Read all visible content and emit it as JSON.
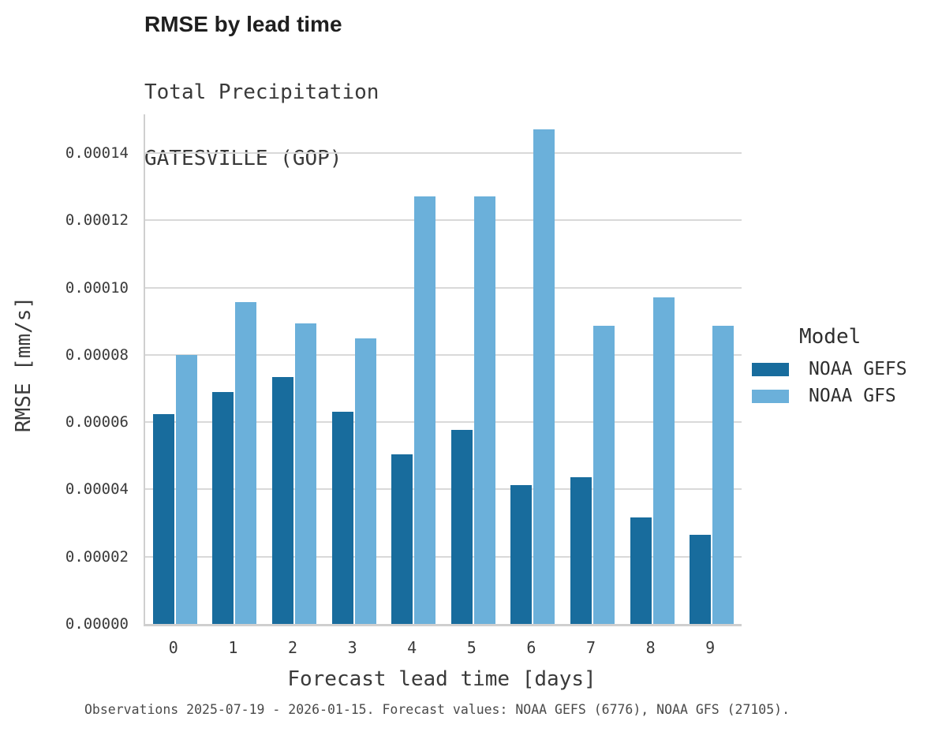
{
  "figure": {
    "title": "RMSE by lead time",
    "subtitle_line1": "Total Precipitation",
    "subtitle_line2": "GATESVILLE (GOP)",
    "footer": "Observations 2025-07-19 - 2026-01-15. Forecast values: NOAA GEFS (6776), NOAA GFS (27105)."
  },
  "chart_data": {
    "type": "bar",
    "title": "RMSE by lead time",
    "subtitle": [
      "Total Precipitation",
      "GATESVILLE (GOP)"
    ],
    "xlabel": "Forecast lead time [days]",
    "ylabel": "RMSE [mm/s]",
    "categories": [
      "0",
      "1",
      "2",
      "3",
      "4",
      "5",
      "6",
      "7",
      "8",
      "9"
    ],
    "series": [
      {
        "name": "NOAA GEFS",
        "color": "#186c9d",
        "values": [
          6.25e-05,
          6.9e-05,
          7.35e-05,
          6.3e-05,
          5.05e-05,
          5.78e-05,
          4.12e-05,
          4.37e-05,
          3.16e-05,
          2.65e-05
        ]
      },
      {
        "name": "NOAA GFS",
        "color": "#6bb0da",
        "values": [
          7.99e-05,
          9.57e-05,
          8.94e-05,
          8.49e-05,
          0.000127,
          0.000127,
          0.000147,
          8.86e-05,
          9.72e-05,
          8.86e-05
        ]
      }
    ],
    "y_ticks": [
      0.0,
      2e-05,
      4e-05,
      6e-05,
      8e-05,
      0.0001,
      0.00012,
      0.00014
    ],
    "y_tick_labels": [
      "0.00000",
      "0.00002",
      "0.00004",
      "0.00006",
      "0.00008",
      "0.00010",
      "0.00012",
      "0.00014"
    ],
    "ylim": [
      0,
      0.0001515
    ],
    "grid": "horizontal",
    "legend_title": "Model",
    "legend_position": "right",
    "colors": {
      "grid": "#d9d9d9",
      "spine": "#cfcfcf",
      "title_text": "#1f1f1f",
      "axis_text": "#3a3a3a",
      "footer_text": "#4a4a4a",
      "background": "#ffffff"
    }
  }
}
